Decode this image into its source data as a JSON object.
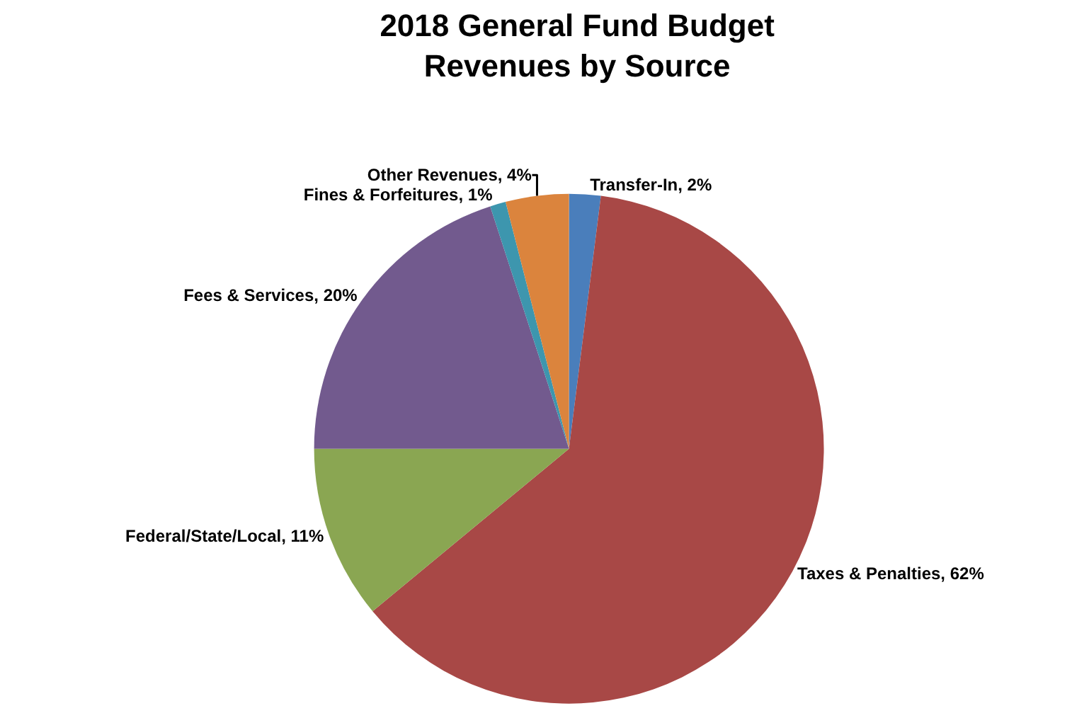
{
  "chart_data": {
    "type": "pie",
    "title": "2018 General Fund Budget\nRevenues by Source",
    "categories": [
      "Transfer-In",
      "Taxes & Penalties",
      "Federal/State/Local",
      "Fees & Services",
      "Fines & Forfeitures",
      "Other Revenues"
    ],
    "values": [
      2,
      62,
      11,
      20,
      1,
      4
    ],
    "value_labels": [
      "2%",
      "62%",
      "11%",
      "20%",
      "1%",
      "4%"
    ],
    "colors": [
      "#4a7ebb",
      "#a84846",
      "#8aa652",
      "#725a8e",
      "#3d96ae",
      "#db843d"
    ],
    "legend": false
  }
}
